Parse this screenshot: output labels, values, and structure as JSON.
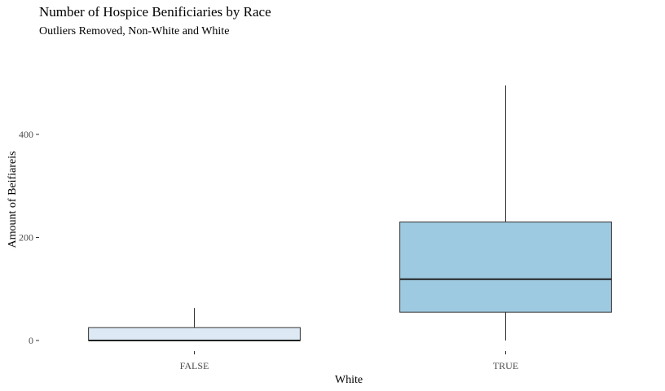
{
  "chart_data": {
    "type": "box",
    "title": "Number of Hospice Benificiaries by Race",
    "subtitle": "Outliers Removed, Non-White and White",
    "xlabel": "White",
    "ylabel": "Amount of Beifiareis",
    "ylim": [
      -20,
      500
    ],
    "yticks": [
      0,
      200,
      400
    ],
    "grid": false,
    "categories": [
      "FALSE",
      "TRUE"
    ],
    "boxes": [
      {
        "category": "FALSE",
        "min": 0,
        "q1": 0,
        "median": 0,
        "q3": 25,
        "max": 63,
        "fill": "#dde9f5"
      },
      {
        "category": "TRUE",
        "min": 0,
        "q1": 55,
        "median": 119,
        "q3": 230,
        "max": 495,
        "fill": "#9ecae1"
      }
    ]
  }
}
